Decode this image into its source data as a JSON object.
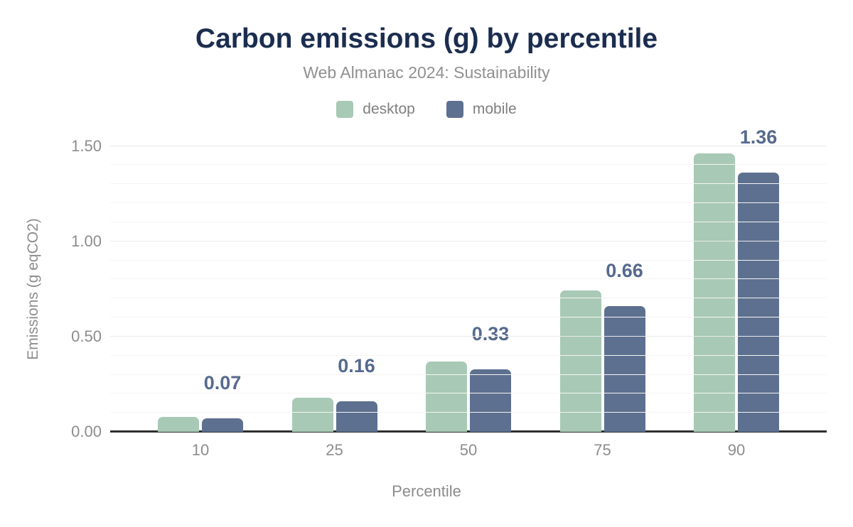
{
  "title": "Carbon emissions (g) by percentile",
  "subtitle": "Web Almanac 2024: Sustainability",
  "legend": [
    {
      "label": "desktop",
      "color": "#a8c9b5"
    },
    {
      "label": "mobile",
      "color": "#5e7090"
    }
  ],
  "chart_data": {
    "type": "bar",
    "categories": [
      "10",
      "25",
      "50",
      "75",
      "90"
    ],
    "series": [
      {
        "name": "desktop",
        "color": "#a8c9b5",
        "values": [
          0.08,
          0.18,
          0.37,
          0.74,
          1.46
        ]
      },
      {
        "name": "mobile",
        "color": "#5e7090",
        "values": [
          0.07,
          0.16,
          0.33,
          0.66,
          1.36
        ]
      }
    ],
    "bar_labels": {
      "series": "mobile",
      "values": [
        "0.07",
        "0.16",
        "0.33",
        "0.66",
        "1.36"
      ]
    },
    "title": "Carbon emissions (g) by percentile",
    "xlabel": "Percentile",
    "ylabel": "Emissions (g eqCO2)",
    "yticks": [
      {
        "value": 0.0,
        "label": "0.00"
      },
      {
        "value": 0.5,
        "label": "0.50"
      },
      {
        "value": 1.0,
        "label": "1.00"
      },
      {
        "value": 1.5,
        "label": "1.50"
      }
    ],
    "ylim": [
      0,
      1.56
    ],
    "minor_grid_step": 0.1,
    "grid": true,
    "legend_position": "top"
  },
  "colors": {
    "title_text": "#1b2d4f",
    "subtitle_text": "#909090",
    "axis_text": "#8c8c8c",
    "data_label_text": "#566a8e",
    "axis_line": "#2f2f2f",
    "gridline_minor": "#f5f5f5",
    "gridline_major": "#e9e9e9",
    "desktop_bar": "#a8c9b5",
    "mobile_bar": "#5e7090",
    "background": "#ffffff"
  }
}
